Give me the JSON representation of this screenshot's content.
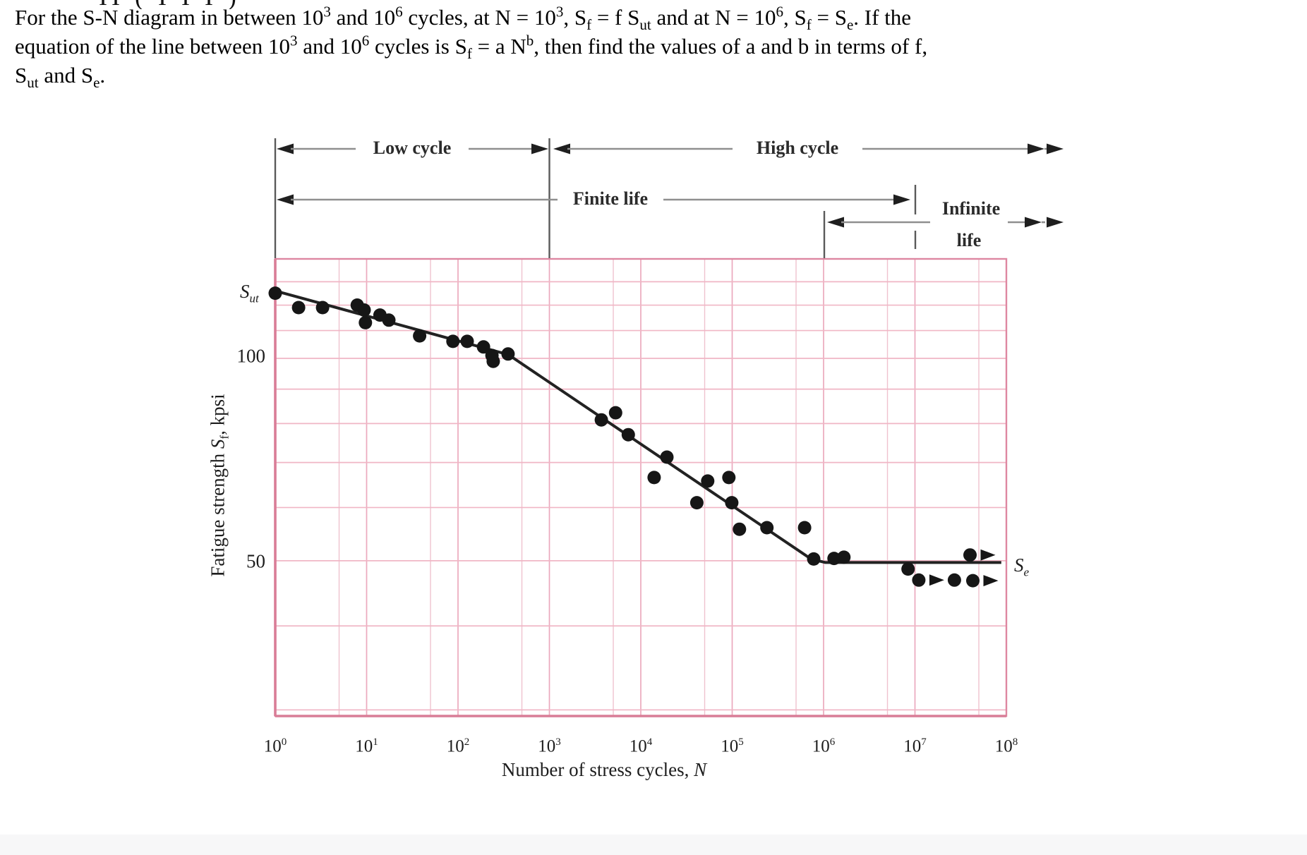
{
  "artifacts": {
    "cropped_text": "II ( I  I  I )"
  },
  "problem": {
    "lines": [
      [
        [
          "t",
          "For the S-N diagram in between 10"
        ],
        [
          "sup",
          "3"
        ],
        [
          "t",
          " and 10"
        ],
        [
          "sup",
          "6"
        ],
        [
          "t",
          " cycles, at N = 10"
        ],
        [
          "sup",
          "3"
        ],
        [
          "t",
          ", S"
        ],
        [
          "sub",
          "f"
        ],
        [
          "t",
          " = f S"
        ],
        [
          "sub",
          "ut"
        ],
        [
          "t",
          " and at N = 10"
        ],
        [
          "sup",
          "6"
        ],
        [
          "t",
          ", S"
        ],
        [
          "sub",
          "f"
        ],
        [
          "t",
          " = S"
        ],
        [
          "sub",
          "e"
        ],
        [
          "t",
          ". If the"
        ]
      ],
      [
        [
          "t",
          "equation of the line between 10"
        ],
        [
          "sup",
          "3"
        ],
        [
          "t",
          " and 10"
        ],
        [
          "sup",
          "6"
        ],
        [
          "t",
          " cycles is S"
        ],
        [
          "sub",
          "f"
        ],
        [
          "t",
          " = a N"
        ],
        [
          "sup",
          "b"
        ],
        [
          "t",
          ", then find the values of a and b in terms of f,"
        ]
      ],
      [
        [
          "t",
          "S"
        ],
        [
          "sub",
          "ut"
        ],
        [
          "t",
          " and S"
        ],
        [
          "sub",
          "e"
        ],
        [
          "t",
          "."
        ]
      ]
    ]
  },
  "annotations": {
    "low_cycle": "Low cycle",
    "high_cycle": "High cycle",
    "finite_life": "Finite life",
    "infinite_life_line1": "Infinite",
    "infinite_life_line2": "life"
  },
  "axes": {
    "x_title_prefix": "Number of stress cycles, ",
    "x_title_symbol": "N",
    "y_title_prefix": "Fatigue strength ",
    "y_title_symbol": "S",
    "y_title_sub": "f",
    "y_title_suffix": ", kpsi",
    "y_ticks": [
      "100",
      "50"
    ],
    "sut_symbol": "S",
    "sut_sub": "ut",
    "se_symbol": "S",
    "se_sub": "e"
  },
  "chart_data": {
    "type": "scatter",
    "title": "",
    "xlabel": "Number of stress cycles, N",
    "ylabel": "Fatigue strength Sf, kpsi",
    "x_scale": "log",
    "y_scale": "log",
    "xlim": [
      1,
      100000000
    ],
    "ylim": [
      30,
      140
    ],
    "x_tick_labels": {
      "base": "10",
      "exponents": [
        0,
        1,
        2,
        3,
        4,
        5,
        6,
        7,
        8
      ]
    },
    "y_tick_values_shown": [
      100,
      50
    ],
    "y_gridline_values": [
      140,
      130,
      120,
      110,
      100,
      90,
      80,
      70,
      60,
      50,
      40,
      30
    ],
    "x_minor_gridlines": "at 5×10^k each decade",
    "grid": true,
    "legend": "none",
    "region_labels": [
      "Low cycle (10^0–10^3)",
      "High cycle (beyond 10^3)",
      "Finite life (to ~10^7)",
      "Infinite life (beyond ~10^7)"
    ],
    "curve_breakpoints": [
      {
        "N": 1,
        "S": 126,
        "note": "Sut"
      },
      {
        "N": 355,
        "S": 101.3
      },
      {
        "N": 730000,
        "S": 50.3
      },
      {
        "N": 1050000,
        "S": 49.7
      },
      {
        "N": 88000000,
        "S": 49.7,
        "note": "Se plateau"
      }
    ],
    "scatter_points": [
      {
        "N": 1.0,
        "S": 125
      },
      {
        "N": 1.8,
        "S": 119
      },
      {
        "N": 3.3,
        "S": 119
      },
      {
        "N": 7.9,
        "S": 120
      },
      {
        "N": 9.4,
        "S": 118
      },
      {
        "N": 9.7,
        "S": 113
      },
      {
        "N": 14,
        "S": 116
      },
      {
        "N": 17.5,
        "S": 114
      },
      {
        "N": 38,
        "S": 108
      },
      {
        "N": 88,
        "S": 106
      },
      {
        "N": 126,
        "S": 106
      },
      {
        "N": 190,
        "S": 104
      },
      {
        "N": 235,
        "S": 101
      },
      {
        "N": 243,
        "S": 99
      },
      {
        "N": 353,
        "S": 101.5
      },
      {
        "N": 3700,
        "S": 81
      },
      {
        "N": 5300,
        "S": 83
      },
      {
        "N": 7300,
        "S": 77
      },
      {
        "N": 14000,
        "S": 66.5
      },
      {
        "N": 19300,
        "S": 71.3
      },
      {
        "N": 41000,
        "S": 61
      },
      {
        "N": 54000,
        "S": 65.7
      },
      {
        "N": 92000,
        "S": 66.5
      },
      {
        "N": 99000,
        "S": 61
      },
      {
        "N": 120000,
        "S": 55.7
      },
      {
        "N": 240000,
        "S": 56
      },
      {
        "N": 620000,
        "S": 56
      },
      {
        "N": 780000,
        "S": 50.3
      },
      {
        "N": 1300000,
        "S": 50.4
      },
      {
        "N": 1670000,
        "S": 50.6
      },
      {
        "N": 8400000,
        "S": 48.6
      },
      {
        "N": 11000000,
        "S": 46.8,
        "runout": true
      },
      {
        "N": 27000000,
        "S": 46.8
      },
      {
        "N": 43000000,
        "S": 46.7,
        "runout": true
      },
      {
        "N": 40000000,
        "S": 51.0,
        "runout": true
      }
    ]
  }
}
